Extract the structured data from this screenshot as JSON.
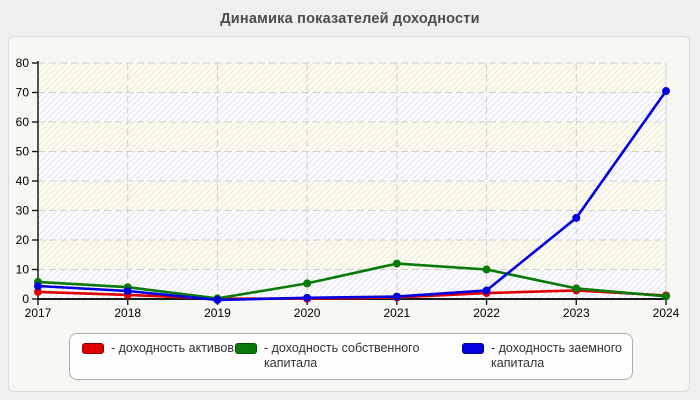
{
  "title": "Динамика показателей доходности",
  "chart_data": {
    "type": "line",
    "x": [
      2017,
      2018,
      2019,
      2020,
      2021,
      2022,
      2023,
      2024
    ],
    "series": [
      {
        "name": "доходность активов",
        "color": "#e00000",
        "values": [
          2.4,
          1.4,
          0.1,
          0.1,
          0.5,
          2.0,
          2.9,
          1.2
        ]
      },
      {
        "name": "доходность собственного капитала",
        "color": "#077a07",
        "values": [
          5.8,
          4.0,
          0.2,
          5.3,
          12.0,
          10.0,
          3.6,
          0.9
        ]
      },
      {
        "name": "доходность заемного капитала",
        "color": "#0000e0",
        "values": [
          4.4,
          2.7,
          -0.3,
          0.4,
          0.8,
          2.9,
          27.5,
          70.5
        ]
      }
    ],
    "title": "Динамика показателей доходности",
    "xlabel": "",
    "ylabel": "",
    "ylim": [
      0,
      80
    ],
    "yticks": [
      0,
      10,
      20,
      30,
      40,
      50,
      60,
      70,
      80
    ],
    "grid": true,
    "grid_style": "dashed",
    "legend_position": "bottom"
  },
  "legend": {
    "items": [
      {
        "label": "- доходность активов",
        "color": "#e00000"
      },
      {
        "label": "- доходность собственного капитала",
        "color": "#077a07"
      },
      {
        "label": "- доходность заемного капитала",
        "color": "#0000e0"
      }
    ]
  },
  "colors": {
    "page_bg": "#efefef",
    "panel_bg": "#f7f7f4",
    "axis": "#1a1a1a",
    "gridline": "#cfcfcf",
    "band_a_bg": "#fdfdff",
    "band_a_line": "#e3e3ef",
    "band_b_bg": "#fdfcf1",
    "band_b_line": "#ece9d8",
    "title_text": "#4c4c4c"
  }
}
